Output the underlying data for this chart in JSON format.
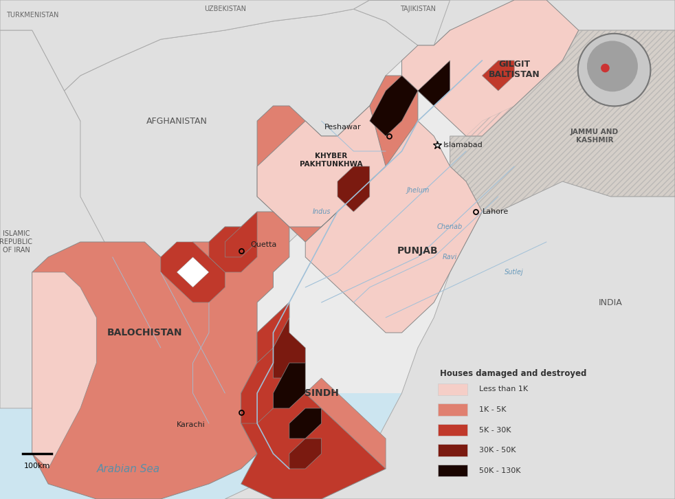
{
  "legend_title": "Houses damaged and destroyed",
  "legend_items": [
    {
      "label": "Less than 1K",
      "color": "#f5cec7"
    },
    {
      "label": "1K - 5K",
      "color": "#e08070"
    },
    {
      "label": "5K - 30K",
      "color": "#c0392b"
    },
    {
      "label": "30K - 50K",
      "color": "#7b1a10"
    },
    {
      "label": "50K - 130K",
      "color": "#1a0500"
    }
  ],
  "background_color": "#ebebeb",
  "neighbor_color": "#e0e0e0",
  "sea_color": "#cce5f0",
  "border_color": "#999999",
  "province_border_color": "#888888",
  "scale_bar_label": "100km"
}
